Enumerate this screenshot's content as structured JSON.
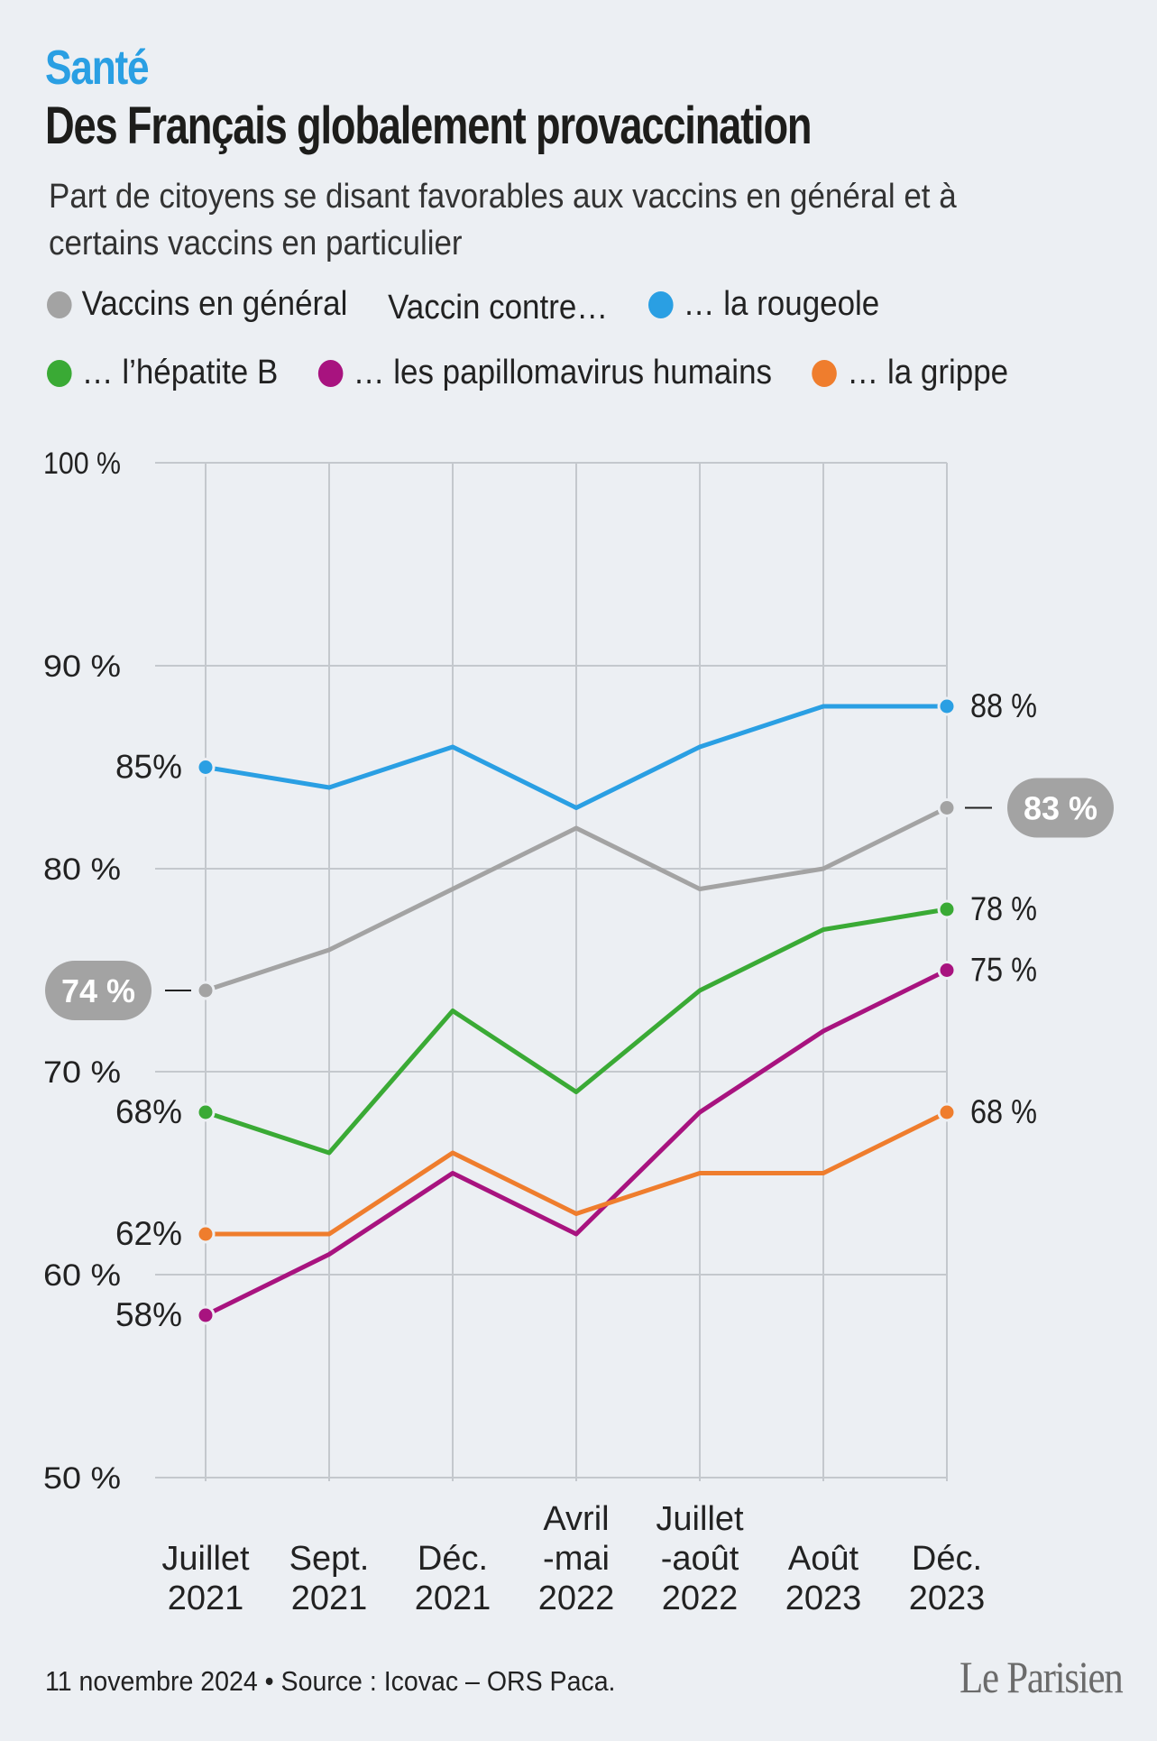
{
  "header": {
    "kicker": "Santé",
    "title": "Des Français globalement provaccination",
    "subtitle": "Part de citoyens se disant favorables aux vaccins en général et à certains vaccins en particulier"
  },
  "legend": {
    "general_label": "Vaccins en général",
    "group_label": "Vaccin contre…",
    "rougeole_label": "… la rougeole",
    "hepatite_label": "… l’hépatite B",
    "papillomavirus_label": "… les papillomavirus humains",
    "grippe_label": "… la grippe"
  },
  "chart_data": {
    "type": "line",
    "title": "Des Français globalement provaccination",
    "subtitle": "Part de citoyens se disant favorables aux vaccins en général et à certains vaccins en particulier",
    "categories": [
      [
        "Juillet",
        "2021"
      ],
      [
        "Sept.",
        "2021"
      ],
      [
        "Déc.",
        "2021"
      ],
      [
        "Avril",
        "-mai",
        "2022"
      ],
      [
        "Juillet",
        "-août",
        "2022"
      ],
      [
        "Août",
        "2023"
      ],
      [
        "Déc.",
        "2023"
      ]
    ],
    "y_ticks": [
      {
        "value": 100,
        "label": "100 %"
      },
      {
        "value": 90,
        "label": "90 %"
      },
      {
        "value": 80,
        "label": "80 %"
      },
      {
        "value": 70,
        "label": "70 %"
      },
      {
        "value": 60,
        "label": "60 %"
      },
      {
        "value": 50,
        "label": "50 %"
      }
    ],
    "ylim": [
      50,
      100
    ],
    "grid": true,
    "series": [
      {
        "key": "rougeole",
        "name": "… la rougeole",
        "color": "#2a9fe3",
        "values": [
          85,
          84,
          86,
          83,
          86,
          88,
          88
        ],
        "start_label": "85%",
        "end_label": "88 %"
      },
      {
        "key": "general",
        "name": "Vaccins en général",
        "color": "#a3a3a3",
        "values": [
          74,
          76,
          79,
          82,
          79,
          80,
          83
        ],
        "start_label": "74 %",
        "end_label": "83 %",
        "badge": true
      },
      {
        "key": "hepatite",
        "name": "… l’hépatite B",
        "color": "#3aaa35",
        "values": [
          68,
          66,
          73,
          69,
          74,
          77,
          78
        ],
        "start_label": "68%",
        "end_label": "78 %"
      },
      {
        "key": "papillomavirus",
        "name": "… les papillomavirus humains",
        "color": "#a8137f",
        "values": [
          58,
          61,
          65,
          62,
          68,
          72,
          75
        ],
        "start_label": "58%",
        "end_label": "75 %"
      },
      {
        "key": "grippe",
        "name": "… la grippe",
        "color": "#ef7d2d",
        "values": [
          62,
          62,
          66,
          63,
          65,
          65,
          68
        ],
        "start_label": "62%",
        "end_label": "68 %"
      }
    ]
  },
  "footer": {
    "source": "11 novembre 2024 • Source : Icovac – ORS Paca.",
    "logo": "Le Parisien"
  }
}
